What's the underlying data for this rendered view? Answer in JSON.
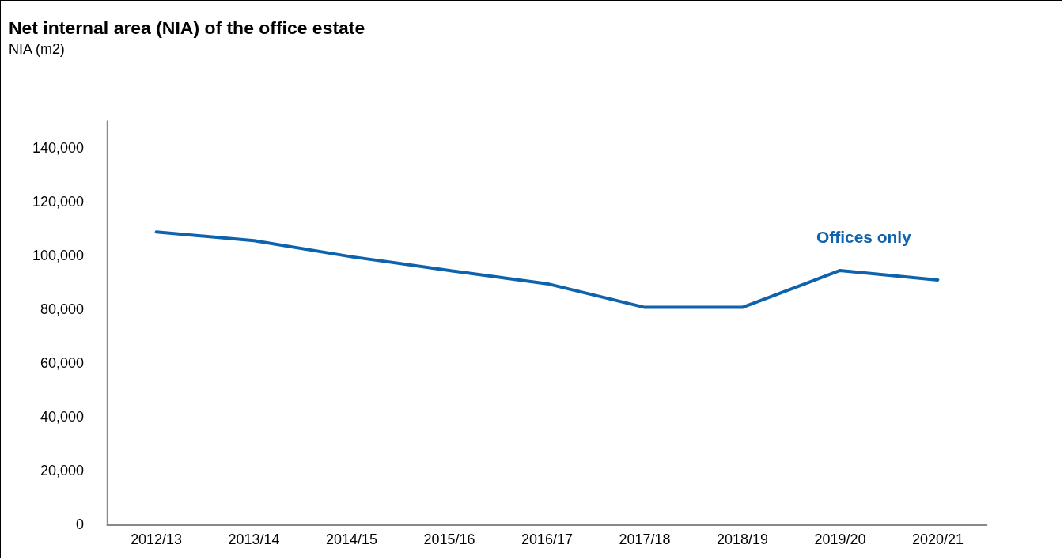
{
  "chart_data": {
    "type": "line",
    "title": "Net internal area (NIA) of the office estate",
    "subtitle": "NIA (m2)",
    "categories": [
      "2012/13",
      "2013/14",
      "2014/15",
      "2015/16",
      "2016/17",
      "2017/18",
      "2018/19",
      "2019/20",
      "2020/21"
    ],
    "series": [
      {
        "name": "Offices only",
        "color": "#0f62ac",
        "values": [
          109000,
          105800,
          99800,
          94700,
          89800,
          81000,
          81000,
          94700,
          91200
        ]
      }
    ],
    "ylim": [
      0,
      150000
    ],
    "yticks": [
      0,
      {
        "value": 20000,
        "label": "20,000"
      },
      {
        "value": 40000,
        "label": "40,000"
      },
      {
        "value": 60000,
        "label": "60,000"
      },
      {
        "value": 80000,
        "label": "80,000"
      },
      {
        "value": 100000,
        "label": "100,000"
      },
      {
        "value": 120000,
        "label": "120,000"
      },
      {
        "value": 140000,
        "label": "140,000"
      }
    ],
    "grid": false,
    "legend": false,
    "marker": "none",
    "line_style": "solid"
  }
}
